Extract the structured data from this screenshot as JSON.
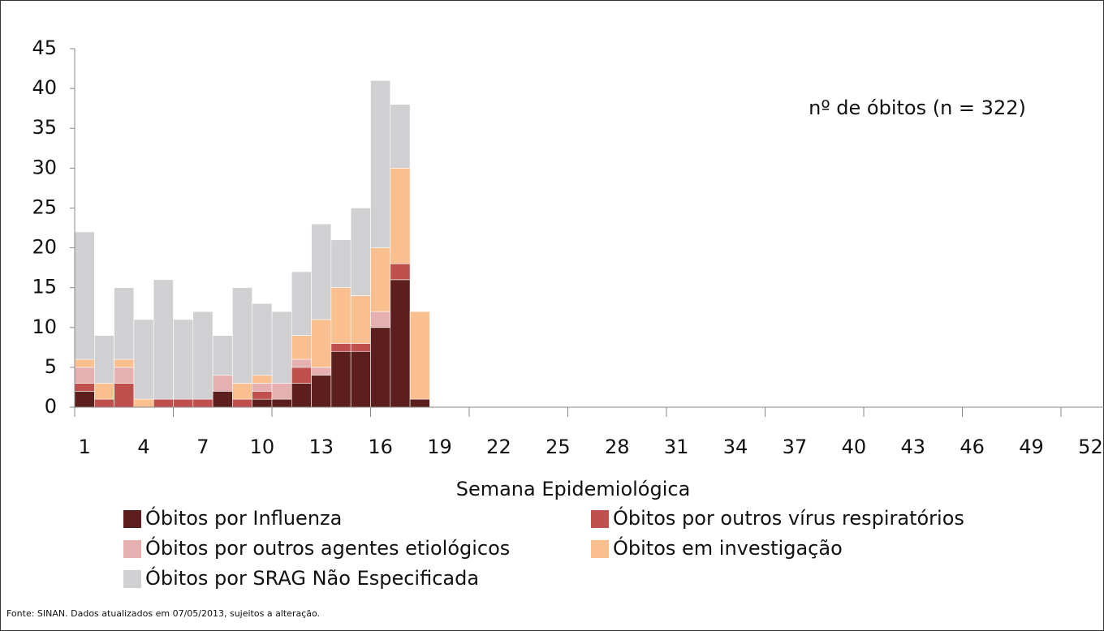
{
  "chart_data": {
    "type": "bar",
    "stacked": true,
    "annotation": "nº de óbitos (n = 322)",
    "x_label": "Semana Epidemiológica",
    "source": "Fonte: SINAN. Dados atualizados em 07/05/2013, sujeitos a alteração.",
    "categories": [
      1,
      null,
      null,
      4,
      null,
      null,
      7,
      null,
      null,
      10,
      null,
      null,
      13,
      null,
      null,
      16,
      null,
      null,
      19,
      null,
      null,
      22,
      null,
      null,
      25,
      null,
      null,
      28,
      null,
      null,
      31,
      null,
      null,
      34,
      null,
      null,
      37,
      null,
      null,
      40,
      null,
      null,
      43,
      null,
      null,
      46,
      null,
      null,
      49,
      null,
      null,
      52
    ],
    "series": [
      {
        "name": "Óbitos por Influenza",
        "color": "#5c1f1d",
        "values": [
          2,
          0,
          0,
          0,
          0,
          0,
          0,
          2,
          0,
          1,
          1,
          3,
          4,
          7,
          7,
          10,
          16,
          1,
          null,
          null,
          null,
          null,
          null,
          null,
          null,
          null,
          null,
          null,
          null,
          null,
          null,
          null,
          null,
          null,
          null,
          null,
          null,
          null,
          null,
          null,
          null,
          null,
          null,
          null,
          null,
          null,
          null,
          null,
          null,
          null,
          null,
          null
        ]
      },
      {
        "name": "Óbitos por outros vírus respiratórios",
        "color": "#c0504d",
        "values": [
          1,
          1,
          3,
          0,
          1,
          1,
          1,
          0,
          1,
          1,
          0,
          2,
          0,
          1,
          1,
          0,
          2,
          0,
          null,
          null,
          null,
          null,
          null,
          null,
          null,
          null,
          null,
          null,
          null,
          null,
          null,
          null,
          null,
          null,
          null,
          null,
          null,
          null,
          null,
          null,
          null,
          null,
          null,
          null,
          null,
          null,
          null,
          null,
          null,
          null,
          null,
          null
        ]
      },
      {
        "name": "Óbitos por outros agentes etiológicos",
        "color": "#e6b0b0",
        "values": [
          2,
          0,
          2,
          0,
          0,
          0,
          0,
          2,
          0,
          1,
          2,
          1,
          1,
          0,
          0,
          2,
          0,
          0,
          null,
          null,
          null,
          null,
          null,
          null,
          null,
          null,
          null,
          null,
          null,
          null,
          null,
          null,
          null,
          null,
          null,
          null,
          null,
          null,
          null,
          null,
          null,
          null,
          null,
          null,
          null,
          null,
          null,
          null,
          null,
          null,
          null,
          null
        ]
      },
      {
        "name": "Óbitos em investigação",
        "color": "#f9bf8f",
        "values": [
          1,
          2,
          1,
          1,
          0,
          0,
          0,
          0,
          2,
          1,
          0,
          3,
          6,
          7,
          6,
          8,
          12,
          11,
          null,
          null,
          null,
          null,
          null,
          null,
          null,
          null,
          null,
          null,
          null,
          null,
          null,
          null,
          null,
          null,
          null,
          null,
          null,
          null,
          null,
          null,
          null,
          null,
          null,
          null,
          null,
          null,
          null,
          null,
          null,
          null,
          null,
          null
        ]
      },
      {
        "name": "Óbitos por SRAG Não Especificada",
        "color": "#d0d0d3",
        "values": [
          16,
          6,
          9,
          10,
          15,
          10,
          11,
          5,
          12,
          9,
          9,
          8,
          12,
          6,
          11,
          21,
          8,
          0,
          null,
          null,
          null,
          null,
          null,
          null,
          null,
          null,
          null,
          null,
          null,
          null,
          null,
          null,
          null,
          null,
          null,
          null,
          null,
          null,
          null,
          null,
          null,
          null,
          null,
          null,
          null,
          null,
          null,
          null,
          null,
          null,
          null,
          null
        ]
      }
    ],
    "ylim": [
      0,
      45
    ],
    "yticks": [
      0,
      5,
      10,
      15,
      20,
      25,
      30,
      35,
      40,
      45
    ]
  }
}
